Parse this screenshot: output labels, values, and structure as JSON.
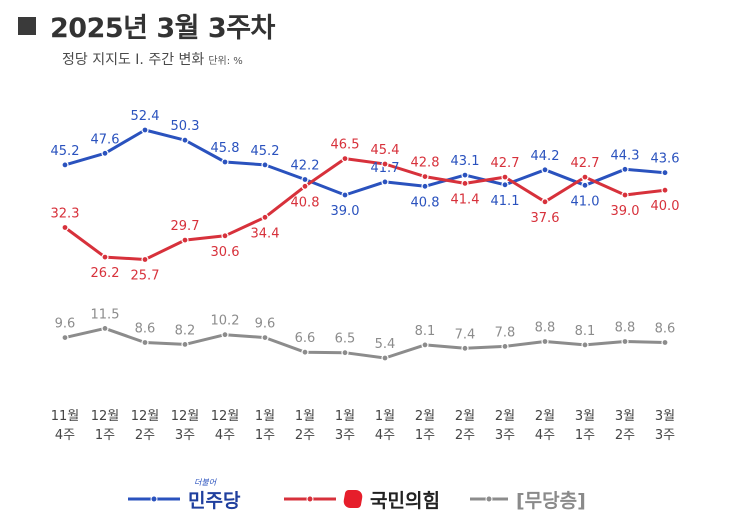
{
  "header": {
    "title": "2025년 3월 3주차",
    "subtitle": "정당 지지도 Ⅰ. 주간 변화",
    "unit": "단위: %"
  },
  "colors": {
    "democratic": "#2a52be",
    "ppp": "#d7313b",
    "independent": "#8c8c8c"
  },
  "chart_data": {
    "type": "line",
    "categories": [
      [
        "11월",
        "4주"
      ],
      [
        "12월",
        "1주"
      ],
      [
        "12월",
        "2주"
      ],
      [
        "12월",
        "3주"
      ],
      [
        "12월",
        "4주"
      ],
      [
        "1월",
        "1주"
      ],
      [
        "1월",
        "2주"
      ],
      [
        "1월",
        "3주"
      ],
      [
        "1월",
        "4주"
      ],
      [
        "2월",
        "1주"
      ],
      [
        "2월",
        "2주"
      ],
      [
        "2월",
        "3주"
      ],
      [
        "2월",
        "4주"
      ],
      [
        "3월",
        "1주"
      ],
      [
        "3월",
        "2주"
      ],
      [
        "3월",
        "3주"
      ]
    ],
    "series": [
      {
        "name": "민주당",
        "key": "democratic",
        "values": [
          45.2,
          47.6,
          52.4,
          50.3,
          45.8,
          45.2,
          42.2,
          39.0,
          41.7,
          40.8,
          43.1,
          41.1,
          44.2,
          41.0,
          44.3,
          43.6
        ]
      },
      {
        "name": "국민의힘",
        "key": "ppp",
        "values": [
          32.3,
          26.2,
          25.7,
          29.7,
          30.6,
          34.4,
          40.8,
          46.5,
          45.4,
          42.8,
          41.4,
          42.7,
          37.6,
          42.7,
          39.0,
          40.0
        ]
      },
      {
        "name": "[무당층]",
        "key": "independent",
        "values": [
          9.6,
          11.5,
          8.6,
          8.2,
          10.2,
          9.6,
          6.6,
          6.5,
          5.4,
          8.1,
          7.4,
          7.8,
          8.8,
          8.1,
          8.8,
          8.6
        ]
      }
    ]
  },
  "legend": {
    "democratic": "민주당",
    "democratic_sub": "더불어",
    "ppp": "국민의힘",
    "independent": "[무당층]"
  }
}
